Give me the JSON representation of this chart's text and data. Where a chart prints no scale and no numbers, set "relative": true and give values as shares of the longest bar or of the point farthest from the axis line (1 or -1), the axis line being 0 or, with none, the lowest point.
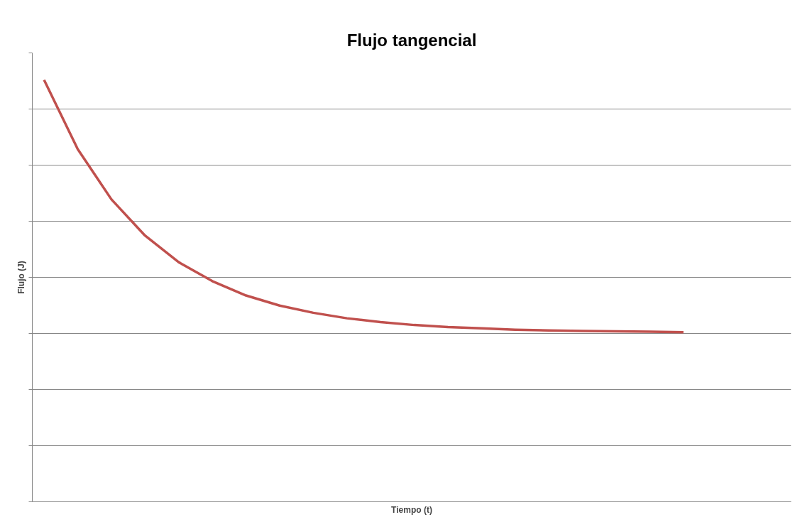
{
  "chart_data": {
    "type": "line",
    "title": "Flujo tangencial",
    "xlabel": "Tiempo (t)",
    "ylabel": "Flujo (J)",
    "relative": true,
    "grid": "y",
    "marker": "none",
    "line_style": "solid",
    "categories": [
      null,
      null,
      null,
      null,
      null,
      null,
      null,
      null,
      null,
      null,
      null,
      null,
      null,
      null,
      null,
      null,
      null,
      null,
      null,
      null
    ],
    "series": [
      {
        "color": "#c0504d",
        "values": [
          1.0,
          0.836,
          0.717,
          0.631,
          0.568,
          0.523,
          0.489,
          0.465,
          0.448,
          0.435,
          0.426,
          0.419,
          0.414,
          0.411,
          0.408,
          0.406,
          0.405,
          0.404,
          0.403,
          0.402
        ]
      }
    ]
  }
}
